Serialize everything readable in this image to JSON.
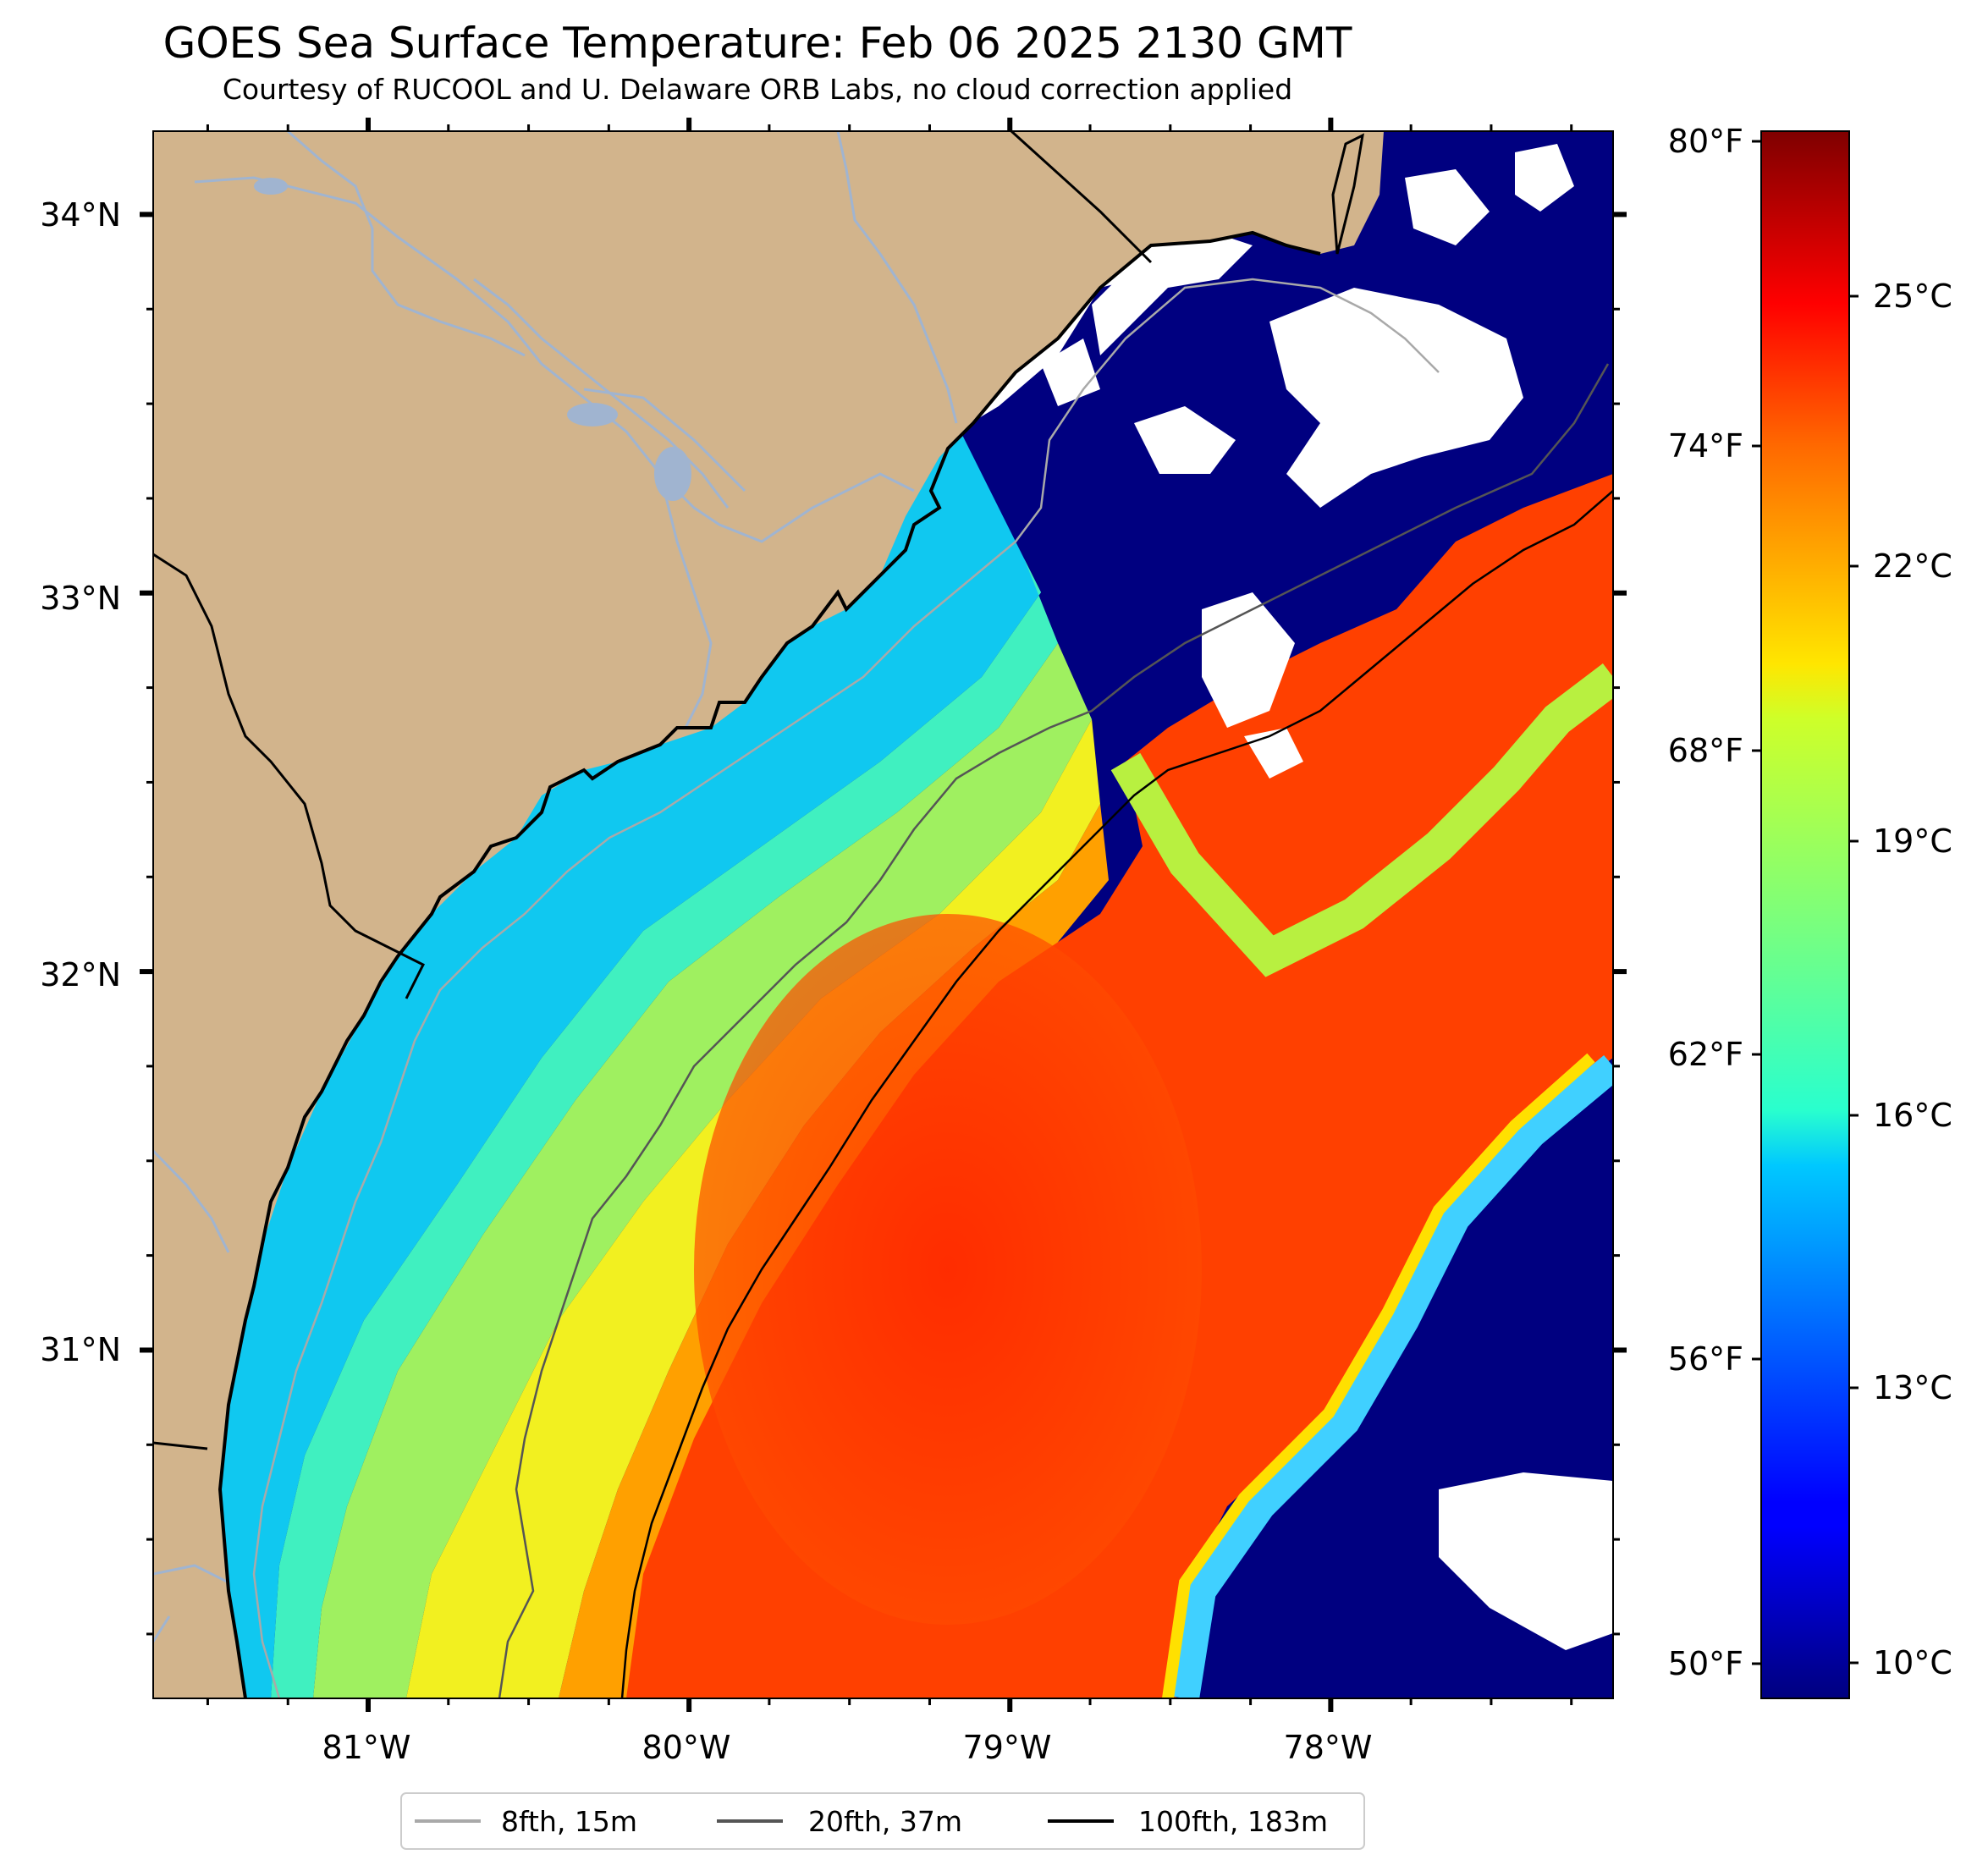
{
  "figure": {
    "title": "GOES Sea Surface Temperature: Feb 06 2025 2130 GMT",
    "subtitle": "Courtesy of RUCOOL and U. Delaware ORB Labs, no cloud correction applied"
  },
  "map": {
    "lon_range": [
      -81.67,
      -77.12
    ],
    "lat_range": [
      30.08,
      34.22
    ],
    "lon_ticks": [
      "81°W",
      "80°W",
      "79°W",
      "78°W"
    ],
    "lat_ticks": [
      "34°N",
      "33°N",
      "32°N",
      "31°N"
    ],
    "colors": {
      "land": "#d2b48c",
      "cloud": "#ffffff",
      "river": "#a0b4d0",
      "coast": "#000000"
    }
  },
  "colorbar": {
    "colormap": "jet",
    "range_c": [
      9.5,
      27.0
    ],
    "celsius_ticks": [
      "25°C",
      "22°C",
      "19°C",
      "16°C",
      "13°C",
      "10°C"
    ],
    "fahrenheit_ticks": [
      "80°F",
      "74°F",
      "68°F",
      "62°F",
      "56°F",
      "50°F"
    ]
  },
  "legend": {
    "placement": "bottom-center",
    "items": [
      {
        "label": "8fth, 15m",
        "color": "#a9a9a9"
      },
      {
        "label": "20fth, 37m",
        "color": "#555555"
      },
      {
        "label": "100fth, 183m",
        "color": "#000000"
      }
    ]
  }
}
